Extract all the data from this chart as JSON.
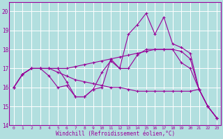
{
  "xlabel": "Windchill (Refroidissement éolien,°C)",
  "background_color": "#b2dfdf",
  "grid_color": "#ffffff",
  "line_color": "#990099",
  "xlim": [
    -0.5,
    23.5
  ],
  "ylim": [
    14,
    20.5
  ],
  "yticks": [
    14,
    15,
    16,
    17,
    18,
    19,
    20
  ],
  "xticks": [
    0,
    1,
    2,
    3,
    4,
    5,
    6,
    7,
    8,
    9,
    10,
    11,
    12,
    13,
    14,
    15,
    16,
    17,
    18,
    19,
    20,
    21,
    22,
    23
  ],
  "series": [
    [
      16.0,
      16.7,
      17.0,
      17.0,
      17.0,
      17.0,
      16.3,
      15.5,
      15.5,
      15.9,
      16.0,
      17.5,
      17.0,
      17.0,
      17.7,
      18.0,
      18.0,
      18.0,
      18.0,
      17.3,
      17.0,
      15.9,
      15.0,
      14.4
    ],
    [
      16.0,
      16.7,
      17.0,
      17.0,
      16.6,
      16.0,
      16.1,
      15.5,
      15.5,
      15.9,
      16.8,
      17.4,
      17.0,
      18.8,
      19.3,
      19.9,
      18.8,
      19.7,
      18.3,
      18.1,
      17.8,
      15.9,
      15.0,
      14.4
    ],
    [
      16.0,
      16.7,
      17.0,
      17.0,
      17.0,
      17.0,
      17.0,
      17.1,
      17.2,
      17.3,
      17.4,
      17.5,
      17.6,
      17.7,
      17.8,
      17.9,
      18.0,
      18.0,
      18.0,
      17.9,
      17.5,
      15.9,
      15.0,
      14.4
    ],
    [
      16.0,
      16.7,
      17.0,
      17.0,
      17.0,
      16.8,
      16.6,
      16.4,
      16.3,
      16.2,
      16.1,
      16.0,
      16.0,
      15.9,
      15.8,
      15.8,
      15.8,
      15.8,
      15.8,
      15.8,
      15.8,
      15.9,
      15.0,
      14.4
    ]
  ]
}
